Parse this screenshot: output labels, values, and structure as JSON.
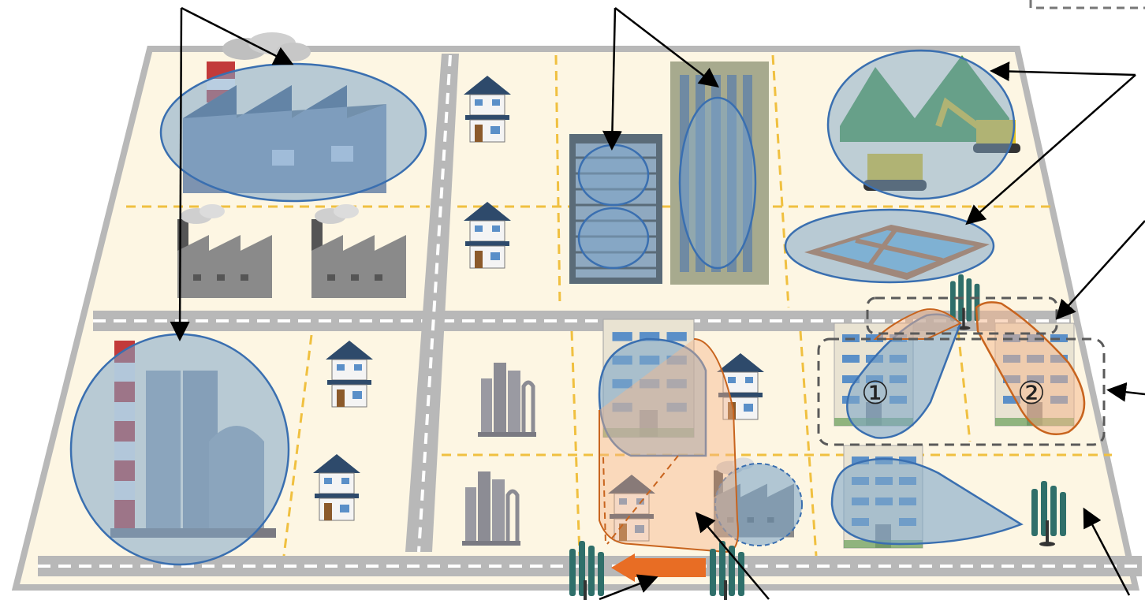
{
  "labels": {
    "zone_1": "①",
    "zone_2": "②"
  },
  "colors": {
    "land": "#fdf6e3",
    "road": "#b8b8b8",
    "road_dash": "#ffffff",
    "zone_divider": "#f0c040",
    "blue_fill": "#7fa6c8",
    "blue_stroke": "#3a6fb0",
    "orange_fill": "#f6b58a",
    "orange_stroke": "#c8641e",
    "arrow_orange": "#e86d24",
    "dash_box": "#5a5a5a"
  },
  "icons": {
    "factory": "factory-icon",
    "house": "house-icon",
    "office": "office-building-icon",
    "apartment": "apartment-building-icon",
    "plant": "chemical-plant-icon",
    "tower": "antenna-tower-icon",
    "mountains": "mountain-construction-icon",
    "paddy": "rice-paddy-icon"
  }
}
